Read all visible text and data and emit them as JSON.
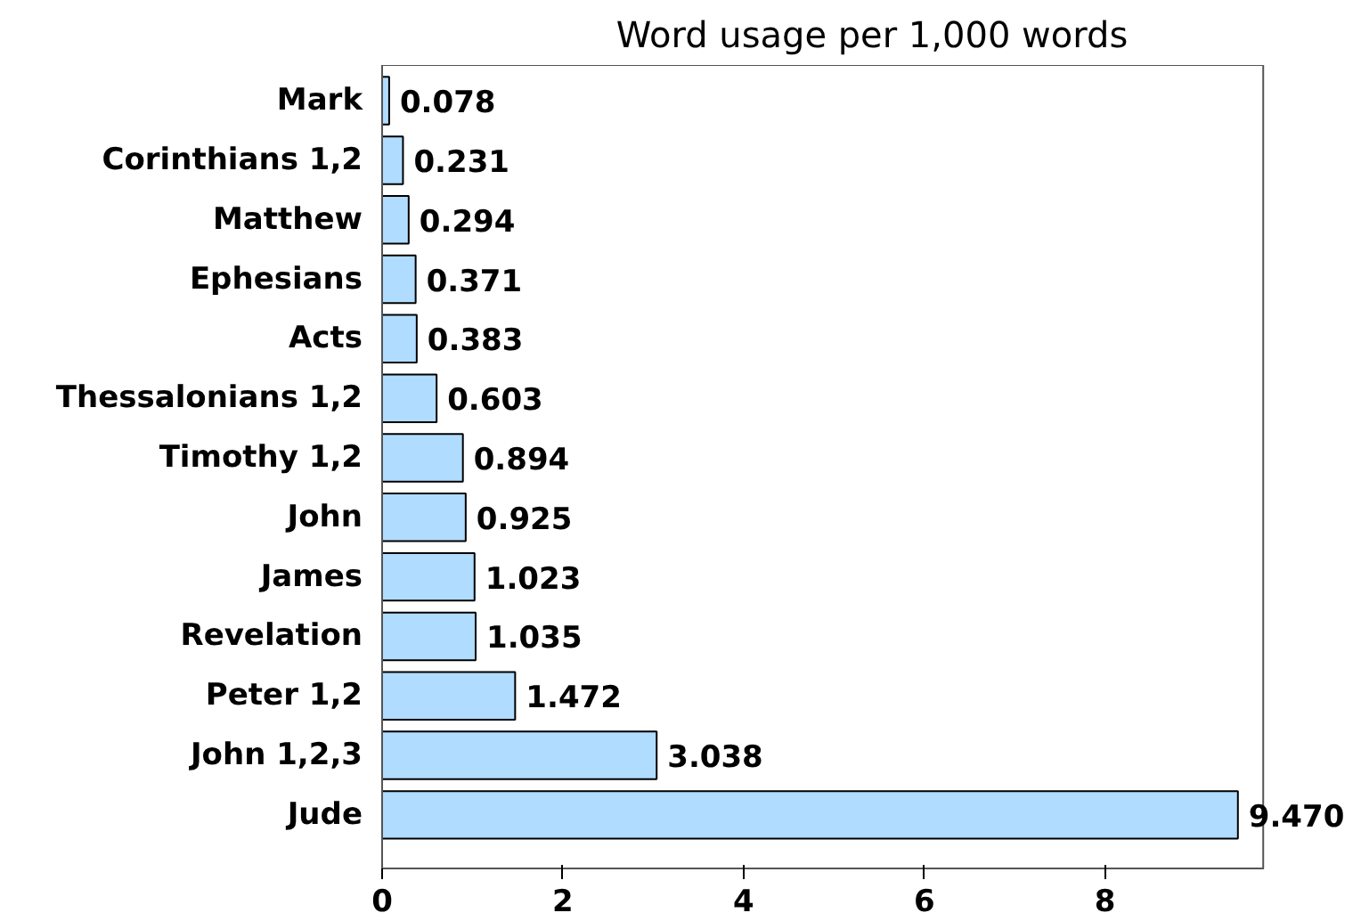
{
  "chart_data": {
    "type": "bar",
    "orientation": "horizontal",
    "title": "Word usage per 1,000 words",
    "categories": [
      "Mark",
      "Corinthians 1,2",
      "Matthew",
      "Ephesians",
      "Acts",
      "Thessalonians 1,2",
      "Timothy 1,2",
      "John",
      "James",
      "Revelation",
      "Peter 1,2",
      "John 1,2,3",
      "Jude"
    ],
    "values": [
      0.078,
      0.231,
      0.294,
      0.371,
      0.383,
      0.603,
      0.894,
      0.925,
      1.023,
      1.035,
      1.472,
      3.038,
      9.47
    ],
    "value_labels": [
      "0.078",
      "0.231",
      "0.294",
      "0.371",
      "0.383",
      "0.603",
      "0.894",
      "0.925",
      "1.023",
      "1.035",
      "1.472",
      "3.038",
      "9.470"
    ],
    "color": "#b0dcff",
    "xlim": [
      0,
      9.75
    ],
    "xticks": [
      0,
      2,
      4,
      6,
      8
    ],
    "grid": false
  }
}
